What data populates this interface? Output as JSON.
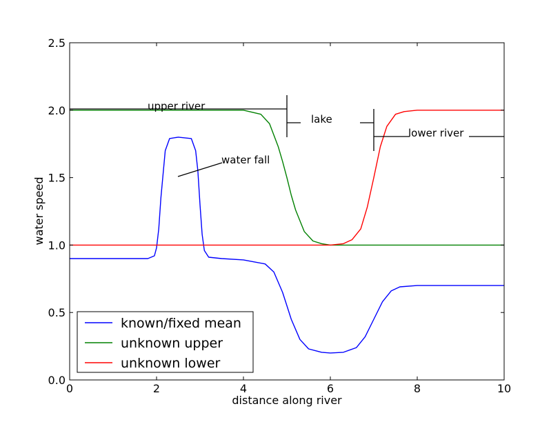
{
  "chart_data": {
    "type": "line",
    "xlabel": "distance along river",
    "ylabel": "water speed",
    "xlim": [
      0,
      10
    ],
    "ylim": [
      0,
      2.5
    ],
    "xticks": [
      0,
      2,
      4,
      6,
      8,
      10
    ],
    "xtick_labels": [
      "0",
      "2",
      "4",
      "6",
      "8",
      "10"
    ],
    "yticks": [
      0,
      0.5,
      1,
      1.5,
      2,
      2.5
    ],
    "ytick_labels": [
      "0.0",
      "0.5",
      "1.0",
      "1.5",
      "2.0",
      "2.5"
    ],
    "grid": false,
    "legend_position": "bottom-left",
    "series": [
      {
        "name": "known/fixed mean",
        "color": "#0000ff",
        "x": [
          0,
          1.8,
          1.95,
          2.0,
          2.05,
          2.1,
          2.2,
          2.3,
          2.5,
          2.8,
          2.9,
          2.95,
          3.0,
          3.05,
          3.1,
          3.2,
          3.5,
          4.0,
          4.5,
          4.7,
          4.9,
          5.0,
          5.1,
          5.3,
          5.5,
          5.8,
          6.0,
          6.3,
          6.6,
          6.8,
          7.0,
          7.2,
          7.4,
          7.6,
          8.0,
          9.0,
          10
        ],
        "y": [
          0.9,
          0.9,
          0.92,
          0.98,
          1.12,
          1.35,
          1.7,
          1.79,
          1.8,
          1.79,
          1.7,
          1.55,
          1.3,
          1.08,
          0.96,
          0.91,
          0.9,
          0.89,
          0.86,
          0.8,
          0.65,
          0.55,
          0.45,
          0.3,
          0.23,
          0.205,
          0.2,
          0.205,
          0.24,
          0.32,
          0.45,
          0.58,
          0.66,
          0.69,
          0.7,
          0.7,
          0.7
        ]
      },
      {
        "name": "unknown upper",
        "color": "#008000",
        "x": [
          0,
          4.0,
          4.4,
          4.6,
          4.8,
          4.9,
          5.0,
          5.1,
          5.2,
          5.4,
          5.6,
          5.8,
          6.0,
          7.0,
          10
        ],
        "y": [
          2.0,
          2.0,
          1.97,
          1.9,
          1.73,
          1.62,
          1.5,
          1.37,
          1.26,
          1.1,
          1.03,
          1.01,
          1.0,
          1.0,
          1.0
        ]
      },
      {
        "name": "unknown lower",
        "color": "#ff0000",
        "x": [
          0,
          5.5,
          6.0,
          6.3,
          6.5,
          6.7,
          6.85,
          7.0,
          7.15,
          7.3,
          7.5,
          7.7,
          8.0,
          10
        ],
        "y": [
          1.0,
          1.0,
          1.0,
          1.01,
          1.04,
          1.12,
          1.28,
          1.5,
          1.73,
          1.88,
          1.97,
          1.99,
          2.0,
          2.0
        ]
      }
    ],
    "annotations": [
      {
        "id": "upper-river",
        "text": "upper river"
      },
      {
        "id": "lake",
        "text": "lake"
      },
      {
        "id": "lower-river",
        "text": "lower river"
      },
      {
        "id": "water-fall",
        "text": "water fall"
      }
    ]
  }
}
